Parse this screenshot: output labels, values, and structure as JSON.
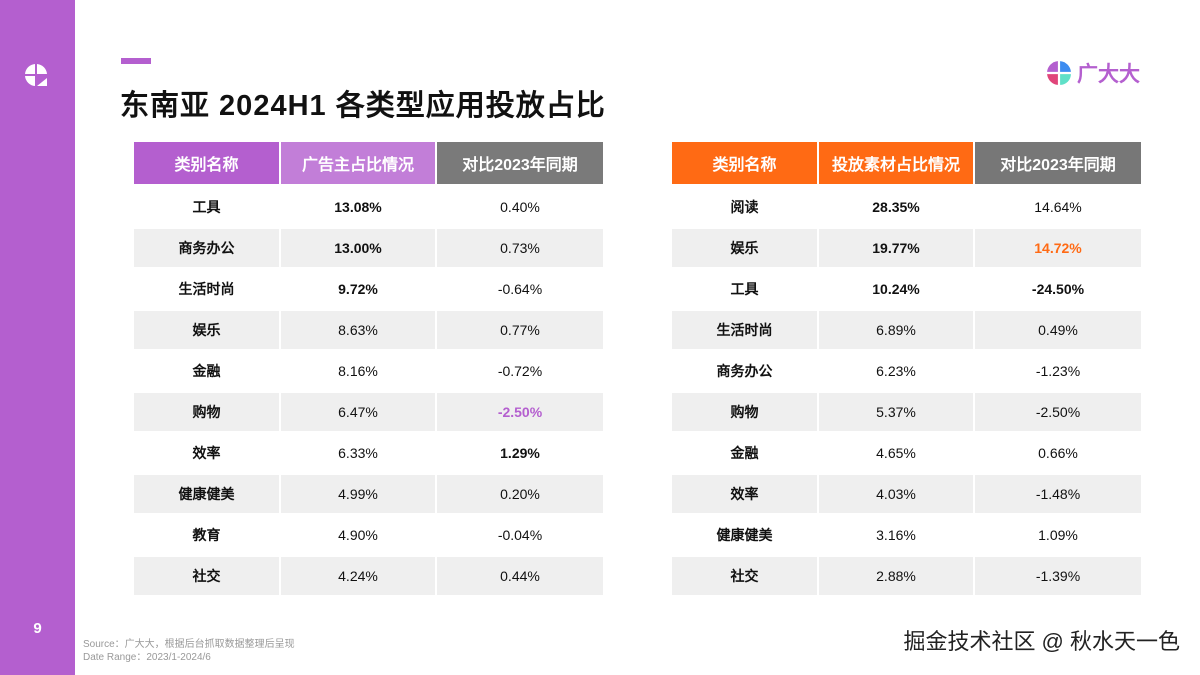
{
  "page_number": "9",
  "title": "东南亚 2024H1 各类型应用投放占比",
  "brand": {
    "name": "广大大"
  },
  "colors": {
    "purple": "#b45fcf",
    "orange": "#ff6a14",
    "gray": "#777777"
  },
  "left_table": {
    "headers": [
      "类别名称",
      "广告主占比情况",
      "对比2023年同期"
    ],
    "rows": [
      {
        "category": "工具",
        "share": "13.08%",
        "change": "0.40%",
        "share_style": "big"
      },
      {
        "category": "商务办公",
        "share": "13.00%",
        "change": "0.73%",
        "share_style": "b"
      },
      {
        "category": "生活时尚",
        "share": "9.72%",
        "change": "-0.64%",
        "share_style": "b"
      },
      {
        "category": "娱乐",
        "share": "8.63%",
        "change": "0.77%"
      },
      {
        "category": "金融",
        "share": "8.16%",
        "change": "-0.72%"
      },
      {
        "category": "购物",
        "share": "6.47%",
        "change": "-2.50%",
        "change_style": "purple"
      },
      {
        "category": "效率",
        "share": "6.33%",
        "change": "1.29%",
        "change_style": "b"
      },
      {
        "category": "健康健美",
        "share": "4.99%",
        "change": "0.20%"
      },
      {
        "category": "教育",
        "share": "4.90%",
        "change": "-0.04%"
      },
      {
        "category": "社交",
        "share": "4.24%",
        "change": "0.44%"
      }
    ]
  },
  "right_table": {
    "headers": [
      "类别名称",
      "投放素材占比情况",
      "对比2023年同期"
    ],
    "rows": [
      {
        "category": "阅读",
        "share": "28.35%",
        "change": "14.64%",
        "share_style": "big"
      },
      {
        "category": "娱乐",
        "share": "19.77%",
        "change": "14.72%",
        "share_style": "b",
        "change_style": "orange"
      },
      {
        "category": "工具",
        "share": "10.24%",
        "change": "-24.50%",
        "share_style": "b",
        "change_style": "b"
      },
      {
        "category": "生活时尚",
        "share": "6.89%",
        "change": "0.49%"
      },
      {
        "category": "商务办公",
        "share": "6.23%",
        "change": "-1.23%"
      },
      {
        "category": "购物",
        "share": "5.37%",
        "change": "-2.50%"
      },
      {
        "category": "金融",
        "share": "4.65%",
        "change": "0.66%"
      },
      {
        "category": "效率",
        "share": "4.03%",
        "change": "-1.48%"
      },
      {
        "category": "健康健美",
        "share": "3.16%",
        "change": "1.09%"
      },
      {
        "category": "社交",
        "share": "2.88%",
        "change": "-1.39%"
      }
    ]
  },
  "footer": {
    "source": "Source：广大大，根据后台抓取数据整理后呈现",
    "date_range": "Date Range：2023/1-2024/6"
  },
  "watermark": "掘金技术社区 @ 秋水天一色"
}
